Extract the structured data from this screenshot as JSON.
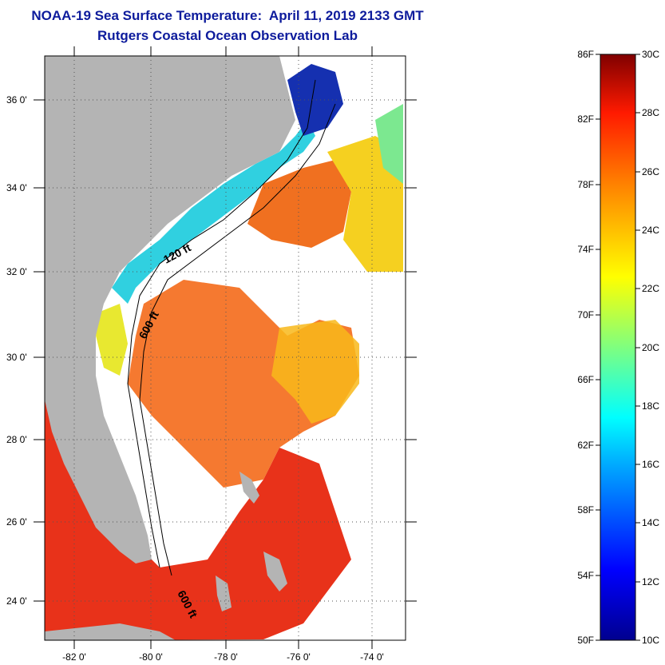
{
  "title": "NOAA-19 Sea Surface Temperature:  April 11, 2019 2133 GMT",
  "subtitle": "Rutgers Coastal Ocean Observation Lab",
  "map": {
    "lat_labels": [
      "36 0'",
      "34 0'",
      "32 0'",
      "30 0'",
      "28 0'",
      "26 0'",
      "24 0'"
    ],
    "lon_labels": [
      "-82 0'",
      "-80 0'",
      "-78 0'",
      "-76 0'",
      "-74 0'"
    ],
    "contour_labels": [
      "120 ft",
      "600 ft",
      "600 ft"
    ],
    "colors": {
      "land": "#b4b4b4",
      "cloud": "#ffffff",
      "warm": "#ee3311",
      "cold": "#1a1aa0"
    }
  },
  "colorbar": {
    "fahrenheit_labels": [
      "86F",
      "82F",
      "78F",
      "74F",
      "70F",
      "66F",
      "62F",
      "58F",
      "54F",
      "50F"
    ],
    "celsius_labels": [
      "30C",
      "28C",
      "26C",
      "24C",
      "22C",
      "20C",
      "18C",
      "16C",
      "14C",
      "12C",
      "10C"
    ]
  }
}
